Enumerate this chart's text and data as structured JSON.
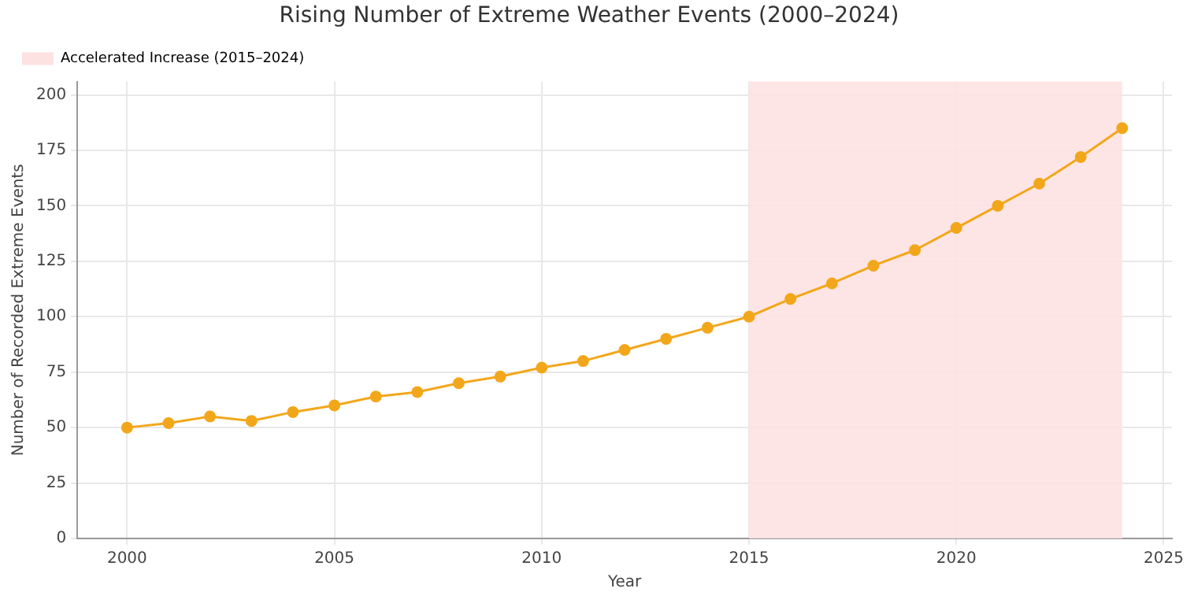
{
  "chart_data": {
    "type": "line",
    "title": "Rising Number of Extreme Weather Events (2000–2024)",
    "xlabel": "Year",
    "ylabel": "Number of Recorded Extreme Events",
    "x": [
      2000,
      2001,
      2002,
      2003,
      2004,
      2005,
      2006,
      2007,
      2008,
      2009,
      2010,
      2011,
      2012,
      2013,
      2014,
      2015,
      2016,
      2017,
      2018,
      2019,
      2020,
      2021,
      2022,
      2023,
      2024
    ],
    "series": [
      {
        "color": "#f2a71b",
        "values": [
          50,
          52,
          55,
          53,
          57,
          60,
          64,
          66,
          70,
          73,
          77,
          80,
          85,
          90,
          95,
          100,
          108,
          115,
          123,
          130,
          140,
          150,
          160,
          172,
          185
        ]
      }
    ],
    "xlim": [
      1998.8,
      2025.2
    ],
    "xticks": [
      2000,
      2005,
      2010,
      2015,
      2020,
      2025
    ],
    "ylim": [
      0,
      206
    ],
    "yticks": [
      0,
      25,
      50,
      75,
      100,
      125,
      150,
      175,
      200
    ],
    "bands": [
      {
        "axis": "x",
        "from": 2015,
        "to": 2024,
        "label": "Accelerated Increase (2015–2024)",
        "color": "#fde2e2"
      }
    ],
    "grid": true,
    "legend": "top left",
    "marker": "circle",
    "line_style": "solid"
  }
}
